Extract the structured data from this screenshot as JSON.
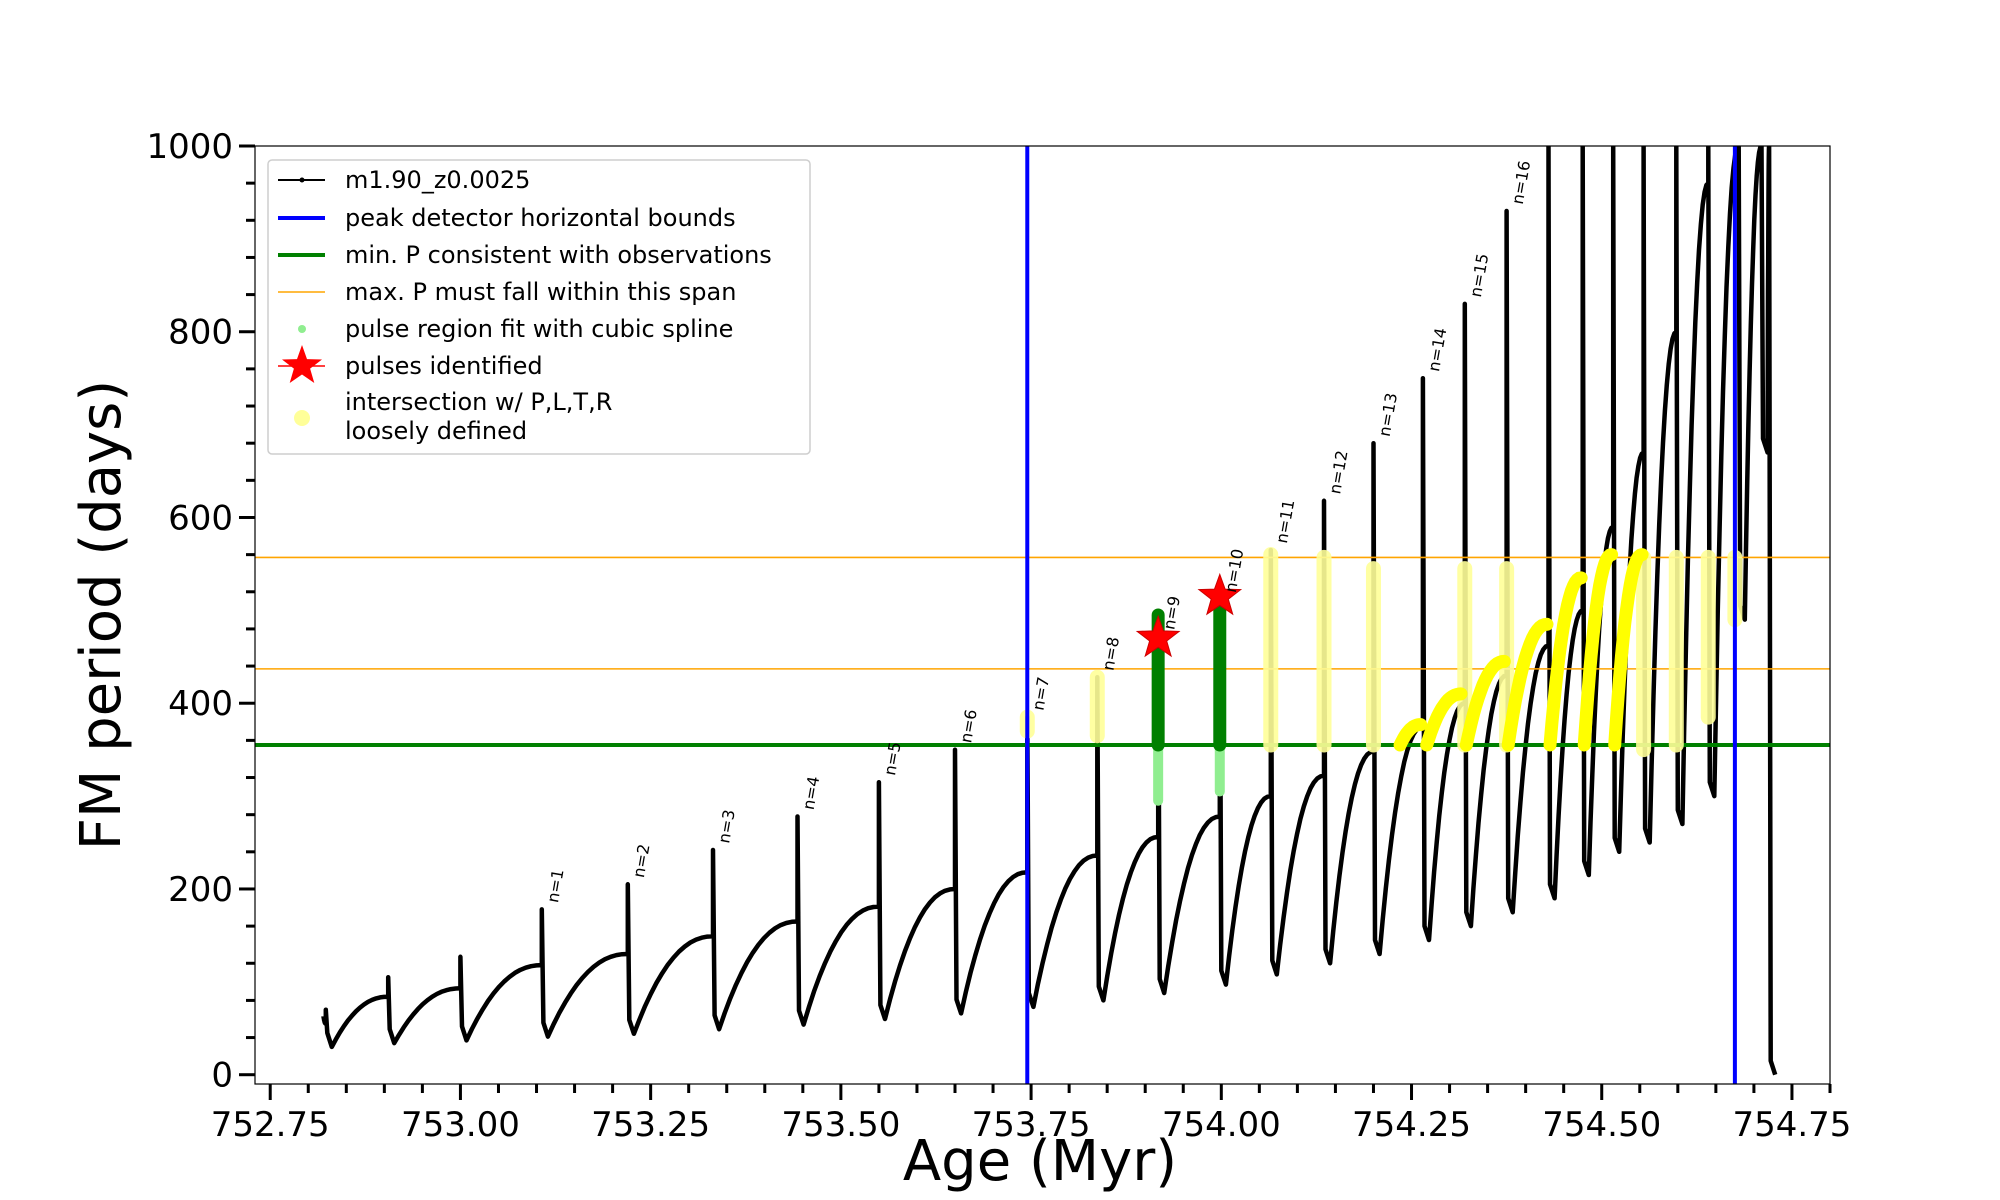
{
  "chart_data": {
    "type": "scatter",
    "title": "",
    "xlabel": "Age (Myr)",
    "ylabel": "FM period (days)",
    "xlim": [
      752.73,
      754.8
    ],
    "ylim": [
      -10,
      1000
    ],
    "xticks": [
      752.75,
      753.0,
      753.25,
      753.5,
      753.75,
      754.0,
      754.25,
      754.5,
      754.75
    ],
    "xtick_labels": [
      "752.75",
      "753.00",
      "753.25",
      "753.50",
      "753.75",
      "754.00",
      "754.25",
      "754.50",
      "754.75"
    ],
    "yticks": [
      0,
      200,
      400,
      600,
      800,
      1000
    ],
    "ytick_labels": [
      "0",
      "200",
      "400",
      "600",
      "800",
      "1000"
    ],
    "grid": false,
    "legend_position": "top-left",
    "legend": [
      {
        "label": "m1.90_z0.0025",
        "kind": "line-marker",
        "color": "#000000"
      },
      {
        "label": "peak detector horizontal bounds",
        "kind": "line",
        "color": "#0000ff"
      },
      {
        "label": "min. P consistent with observations",
        "kind": "line",
        "color": "#008000"
      },
      {
        "label": "max. P must fall within this span",
        "kind": "thin-line",
        "color": "#ffa500"
      },
      {
        "label": "pulse region fit with cubic spline",
        "kind": "dot",
        "color": "#90ee90"
      },
      {
        "label": "pulses identified",
        "kind": "star",
        "color": "#ff0000"
      },
      {
        "label": "intersection w/ P,L,T,R",
        "label2": "loosely defined",
        "kind": "circle",
        "color": "#ffff99"
      }
    ],
    "vertical_lines": {
      "color": "#0000ff",
      "x": [
        753.745,
        754.675
      ]
    },
    "min_period_line": {
      "color": "#008000",
      "y": 355
    },
    "max_period_span": {
      "color": "#ffa500",
      "y": [
        437,
        557
      ]
    },
    "track": {
      "name": "m1.90_z0.0025",
      "color": "#000000",
      "start": {
        "x": 752.82,
        "y": 63
      },
      "pulses": [
        {
          "label": "",
          "x": 752.823,
          "pre": 55,
          "peak": 70,
          "dip": 30
        },
        {
          "label": "",
          "x": 752.905,
          "pre": 84,
          "peak": 105,
          "dip": 34
        },
        {
          "label": "",
          "x": 753.0,
          "pre": 93,
          "peak": 127,
          "dip": 37
        },
        {
          "label": "n=1",
          "x": 753.107,
          "pre": 118,
          "peak": 178,
          "dip": 41
        },
        {
          "label": "n=2",
          "x": 753.22,
          "pre": 130,
          "peak": 205,
          "dip": 44
        },
        {
          "label": "n=3",
          "x": 753.332,
          "pre": 149,
          "peak": 242,
          "dip": 49
        },
        {
          "label": "n=4",
          "x": 753.443,
          "pre": 165,
          "peak": 278,
          "dip": 54
        },
        {
          "label": "n=5",
          "x": 753.55,
          "pre": 181,
          "peak": 315,
          "dip": 60
        },
        {
          "label": "n=6",
          "x": 753.65,
          "pre": 200,
          "peak": 350,
          "dip": 66
        },
        {
          "label": "n=7",
          "x": 753.745,
          "pre": 218,
          "peak": 385,
          "dip": 73
        },
        {
          "label": "n=8",
          "x": 753.837,
          "pre": 236,
          "peak": 428,
          "dip": 80
        },
        {
          "label": "n=9",
          "x": 753.917,
          "pre": 256,
          "peak": 472,
          "dip": 88
        },
        {
          "label": "n=10",
          "x": 753.998,
          "pre": 278,
          "peak": 512,
          "dip": 97
        },
        {
          "label": "n=11",
          "x": 754.065,
          "pre": 300,
          "peak": 565,
          "dip": 108
        },
        {
          "label": "n=12",
          "x": 754.135,
          "pre": 322,
          "peak": 618,
          "dip": 120
        },
        {
          "label": "n=13",
          "x": 754.2,
          "pre": 348,
          "peak": 680,
          "dip": 130
        },
        {
          "label": "n=14",
          "x": 754.265,
          "pre": 375,
          "peak": 750,
          "dip": 145
        },
        {
          "label": "n=15",
          "x": 754.32,
          "pre": 400,
          "peak": 830,
          "dip": 160
        },
        {
          "label": "n=16",
          "x": 754.375,
          "pre": 430,
          "peak": 930,
          "dip": 175
        },
        {
          "label": "",
          "x": 754.43,
          "pre": 462,
          "peak": 1000,
          "dip": 190
        },
        {
          "label": "",
          "x": 754.475,
          "pre": 500,
          "peak": 1000,
          "dip": 215
        },
        {
          "label": "",
          "x": 754.515,
          "pre": 590,
          "peak": 1000,
          "dip": 240
        },
        {
          "label": "",
          "x": 754.555,
          "pre": 670,
          "peak": 1000,
          "dip": 250
        },
        {
          "label": "",
          "x": 754.598,
          "pre": 800,
          "peak": 1000,
          "dip": 270
        },
        {
          "label": "",
          "x": 754.64,
          "pre": 960,
          "peak": 1000,
          "dip": 300
        },
        {
          "label": "",
          "x": 754.68,
          "pre": 1000,
          "peak": 1000,
          "dip": 490
        },
        {
          "label": "",
          "x": 754.71,
          "pre": 1000,
          "peak": 1000,
          "dip": 670
        },
        {
          "label": "",
          "x": 754.72,
          "pre": 1000,
          "peak": 1000,
          "dip": 0
        }
      ]
    },
    "identified_pulses": [
      {
        "label": "n=9",
        "x": 753.917,
        "y": 470
      },
      {
        "label": "n=10",
        "x": 753.998,
        "y": 515
      }
    ],
    "spline_regions": [
      {
        "x": 753.917,
        "y": [
          295,
          355
        ]
      },
      {
        "x": 753.998,
        "y": [
          305,
          355
        ]
      }
    ],
    "consistent_regions": [
      {
        "x": 753.917,
        "y": [
          355,
          495
        ]
      },
      {
        "x": 753.998,
        "y": [
          355,
          500
        ]
      }
    ],
    "intersection_regions": [
      {
        "x": 753.745,
        "y": [
          370,
          385
        ]
      },
      {
        "x": 753.837,
        "y": [
          365,
          428
        ]
      },
      {
        "x": 754.065,
        "y": [
          355,
          560
        ]
      },
      {
        "x": 754.135,
        "y": [
          355,
          557
        ]
      },
      {
        "x": 754.2,
        "y": [
          355,
          545
        ]
      },
      {
        "x": 754.32,
        "y": [
          355,
          545
        ]
      },
      {
        "x": 754.375,
        "y": [
          355,
          545
        ]
      },
      {
        "x": 754.555,
        "y": [
          350,
          557
        ]
      },
      {
        "x": 754.598,
        "y": [
          355,
          557
        ]
      },
      {
        "x": 754.64,
        "y": [
          385,
          557
        ]
      },
      {
        "x": 754.675,
        "y": [
          490,
          557
        ]
      }
    ],
    "intersection_arcs": [
      {
        "x": [
          754.235,
          754.262
        ],
        "y": [
          355,
          377
        ]
      },
      {
        "x": [
          754.27,
          754.315
        ],
        "y": [
          355,
          410
        ]
      },
      {
        "x": [
          754.322,
          754.372
        ],
        "y": [
          355,
          445
        ]
      },
      {
        "x": [
          754.377,
          754.428
        ],
        "y": [
          355,
          485
        ]
      },
      {
        "x": [
          754.432,
          754.473
        ],
        "y": [
          355,
          535
        ]
      },
      {
        "x": [
          754.477,
          754.513
        ],
        "y": [
          355,
          560
        ]
      },
      {
        "x": [
          754.517,
          754.553
        ],
        "y": [
          355,
          560
        ]
      }
    ]
  }
}
